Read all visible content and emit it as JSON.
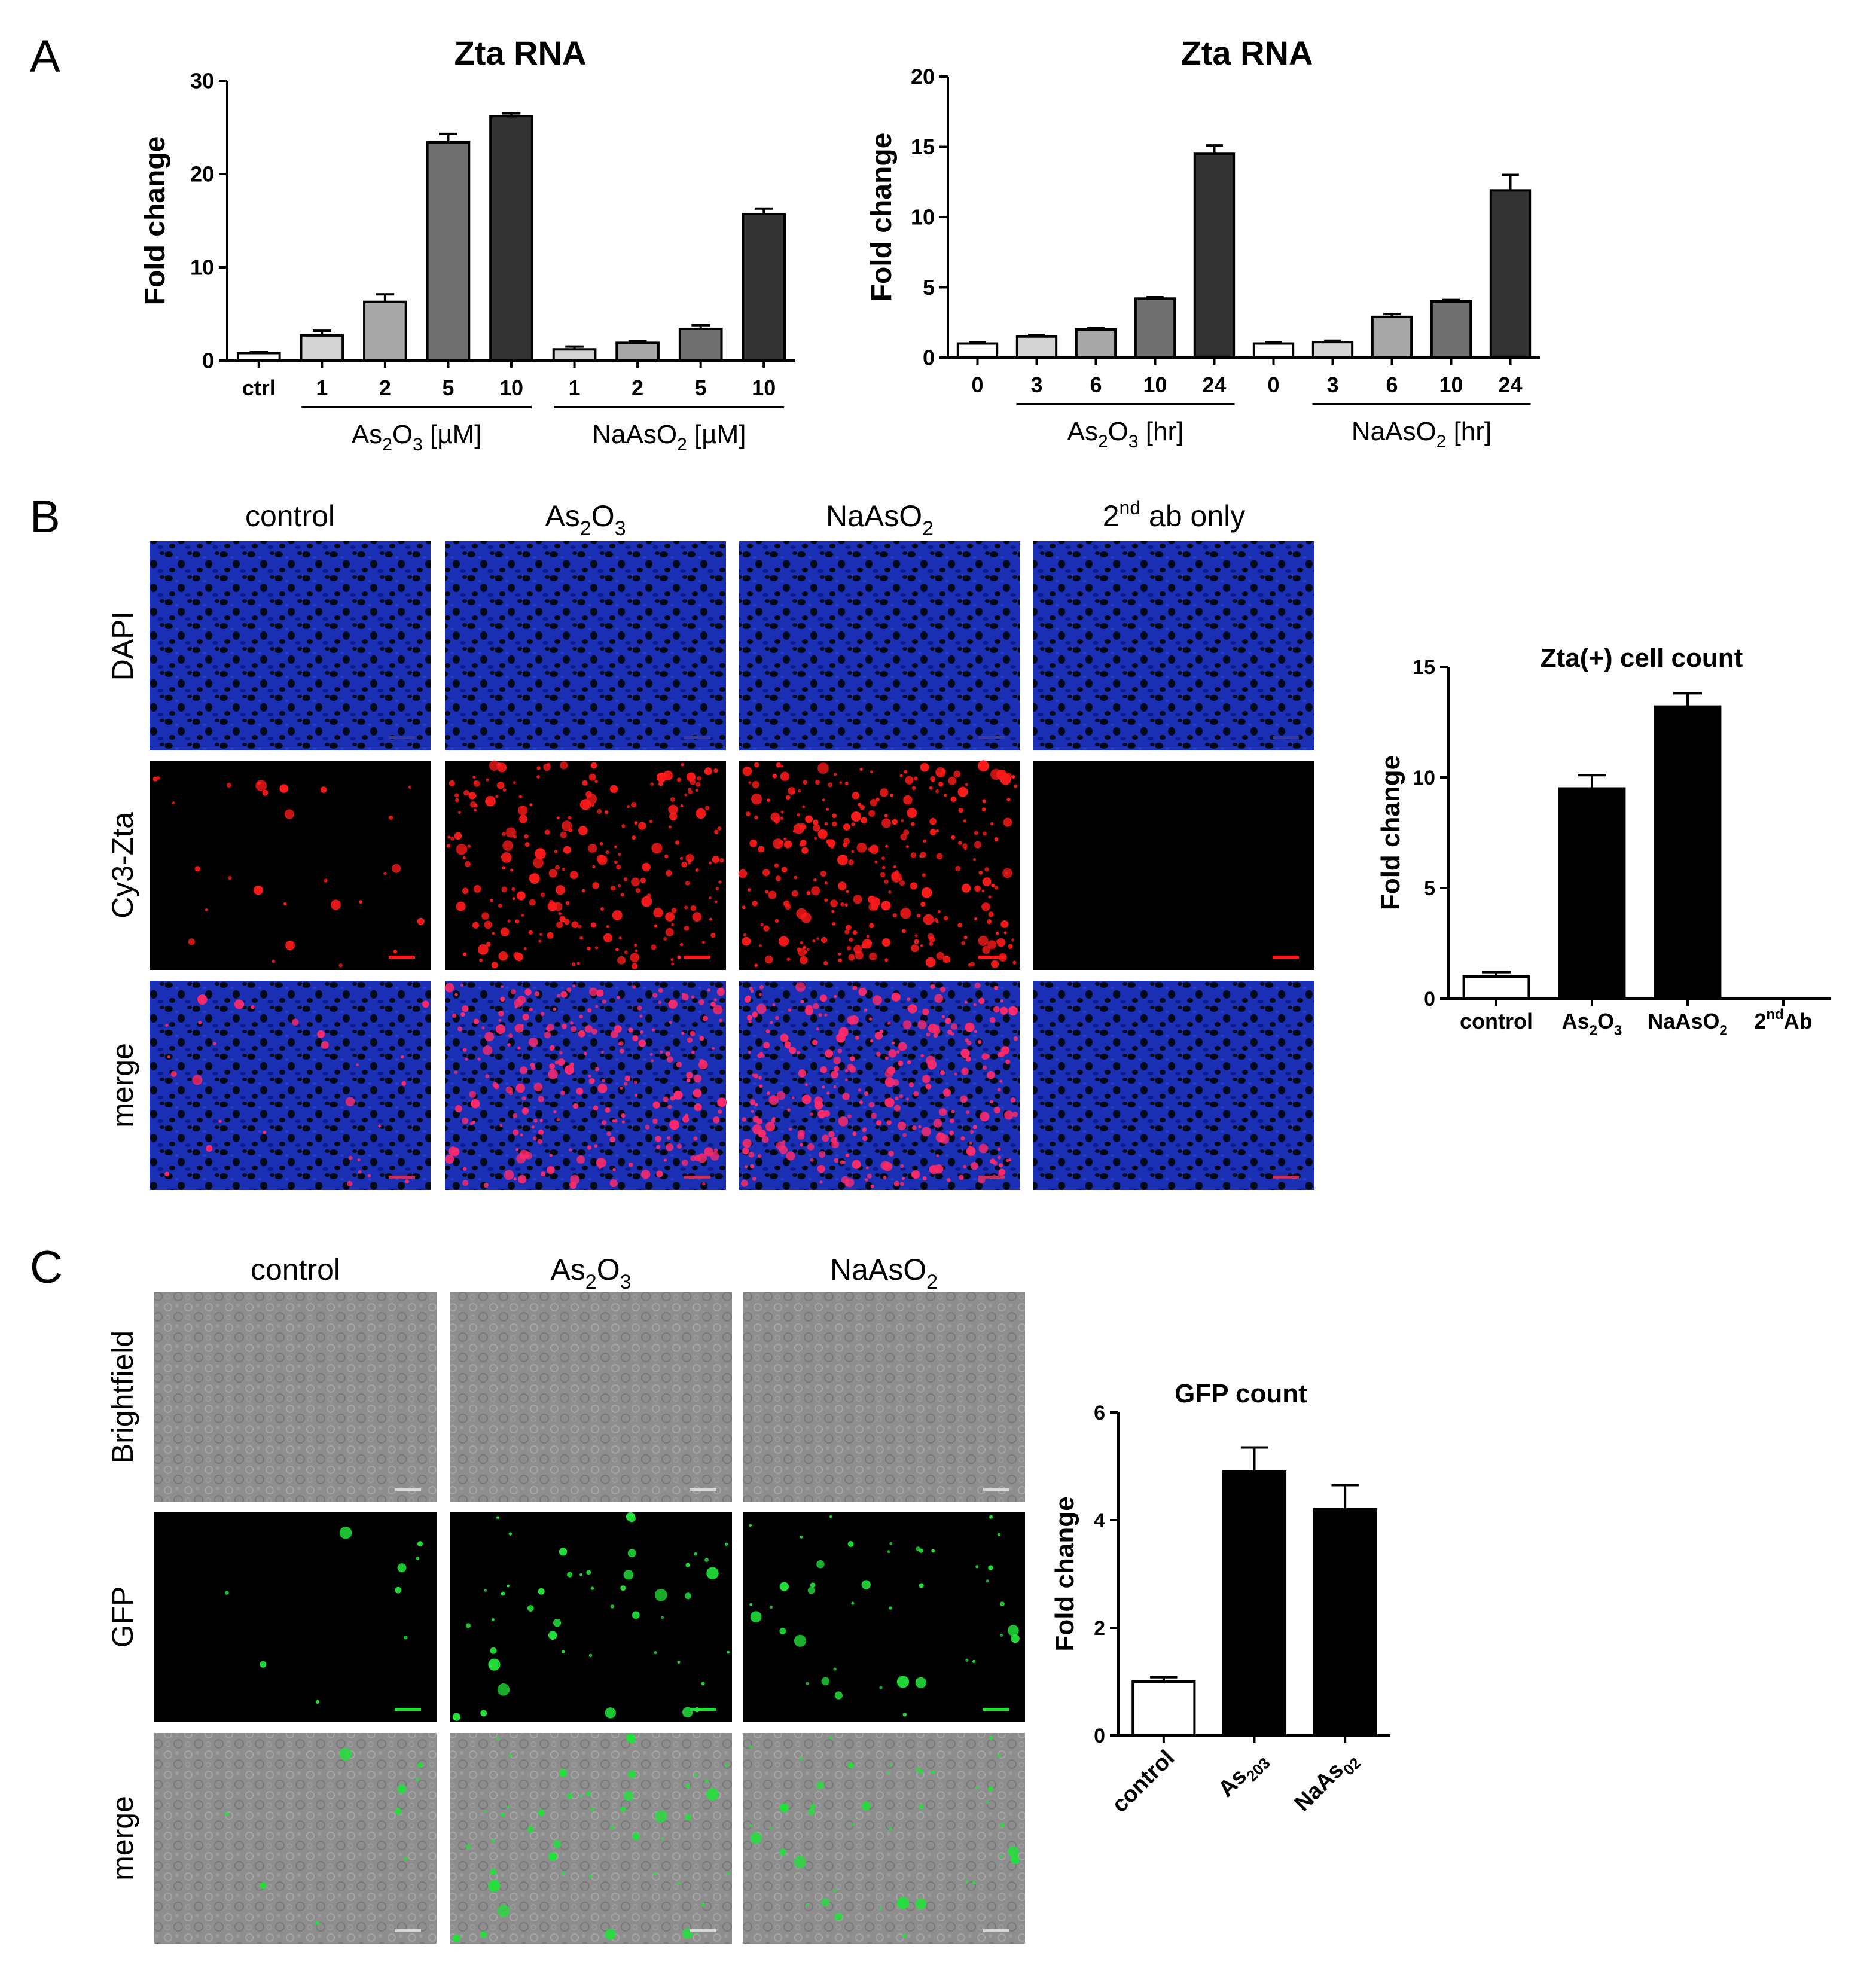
{
  "panel_letters": [
    "A",
    "B",
    "C"
  ],
  "colors": {
    "axis": "#000000",
    "bar_light": "#d4d4d4",
    "bar_mid": "#a8a8a8",
    "bar_dark": "#707070",
    "bar_darkest": "#333333",
    "bar_black": "#000000",
    "dapi_blue": "#1226a0",
    "cy3_red": "#ff1a1a",
    "gfp_green": "#22e03a",
    "brightfield_gray": "#8c8c8c"
  },
  "chart_data": [
    {
      "id": "A1",
      "type": "bar",
      "title": "Zta RNA",
      "ylabel": "Fold change",
      "ylim": [
        0,
        30
      ],
      "yticks": [
        0,
        10,
        20,
        30
      ],
      "categories": [
        "ctrl",
        "1",
        "2",
        "5",
        "10",
        "1",
        "2",
        "5",
        "10"
      ],
      "values": [
        0.8,
        2.7,
        6.3,
        23.4,
        26.2,
        1.2,
        1.9,
        3.4,
        15.7
      ],
      "errors": [
        0.1,
        0.5,
        0.8,
        0.9,
        0.3,
        0.3,
        0.2,
        0.4,
        0.6
      ],
      "bar_colors": [
        "#ffffff",
        "#d4d4d4",
        "#a8a8a8",
        "#707070",
        "#333333",
        "#d4d4d4",
        "#a8a8a8",
        "#707070",
        "#333333"
      ],
      "groups": [
        {
          "label_main": "As",
          "sub1": "2",
          "mid": "O",
          "sub2": "3",
          "suffix": " [µM]",
          "from": 1,
          "to": 4
        },
        {
          "label_main": "NaAsO",
          "sub1": "2",
          "mid": "",
          "sub2": "",
          "suffix": " [µM]",
          "from": 5,
          "to": 8
        }
      ]
    },
    {
      "id": "A2",
      "type": "bar",
      "title": "Zta RNA",
      "ylabel": "Fold change",
      "ylim": [
        0,
        20
      ],
      "yticks": [
        0,
        5,
        10,
        15,
        20
      ],
      "categories": [
        "0",
        "3",
        "6",
        "10",
        "24",
        "0",
        "3",
        "6",
        "10",
        "24"
      ],
      "values": [
        1.0,
        1.5,
        2.0,
        4.2,
        14.5,
        1.0,
        1.1,
        2.9,
        4.0,
        11.9
      ],
      "errors": [
        0.1,
        0.1,
        0.1,
        0.1,
        0.6,
        0.1,
        0.1,
        0.2,
        0.1,
        1.1
      ],
      "bar_colors": [
        "#ffffff",
        "#d4d4d4",
        "#a8a8a8",
        "#707070",
        "#333333",
        "#ffffff",
        "#d4d4d4",
        "#a8a8a8",
        "#707070",
        "#333333"
      ],
      "groups": [
        {
          "label_main": "As",
          "sub1": "2",
          "mid": "O",
          "sub2": "3",
          "suffix": " [hr]",
          "from": 1,
          "to": 4
        },
        {
          "label_main": "NaAsO",
          "sub1": "2",
          "mid": "",
          "sub2": "",
          "suffix": " [hr]",
          "from": 6,
          "to": 9
        }
      ]
    },
    {
      "id": "B",
      "type": "bar",
      "title": "Zta(+) cell count",
      "ylabel": "Fold change",
      "ylim": [
        0,
        15
      ],
      "yticks": [
        0,
        5,
        10,
        15
      ],
      "categories": [
        "control",
        "As2O3",
        "NaAsO2",
        "2ndAb"
      ],
      "values": [
        1.0,
        9.5,
        13.2,
        0.0
      ],
      "errors": [
        0.2,
        0.6,
        0.6,
        0.0
      ],
      "bar_colors": [
        "#ffffff",
        "#000000",
        "#000000",
        "#000000"
      ]
    },
    {
      "id": "C",
      "type": "bar",
      "title": "GFP count",
      "ylabel": "Fold change",
      "ylim": [
        0,
        6
      ],
      "yticks": [
        0,
        2,
        4,
        6
      ],
      "categories": [
        "control",
        "As203",
        "NaAs02"
      ],
      "values": [
        1.0,
        4.9,
        4.2
      ],
      "errors": [
        0.08,
        0.45,
        0.45
      ],
      "bar_colors": [
        "#ffffff",
        "#000000",
        "#000000"
      ]
    }
  ],
  "panel_b": {
    "columns": [
      "control",
      "As2O3",
      "NaAsO2",
      "2nd ab only"
    ],
    "rows": [
      "DAPI",
      "Cy3-Zta",
      "merge"
    ],
    "zta_density": [
      0.05,
      0.55,
      0.7,
      0.0
    ]
  },
  "panel_c": {
    "columns": [
      "control",
      "As2O3",
      "NaAsO2"
    ],
    "rows": [
      "Brightfield",
      "GFP",
      "merge"
    ],
    "gfp_density": [
      0.12,
      0.6,
      0.55
    ]
  }
}
